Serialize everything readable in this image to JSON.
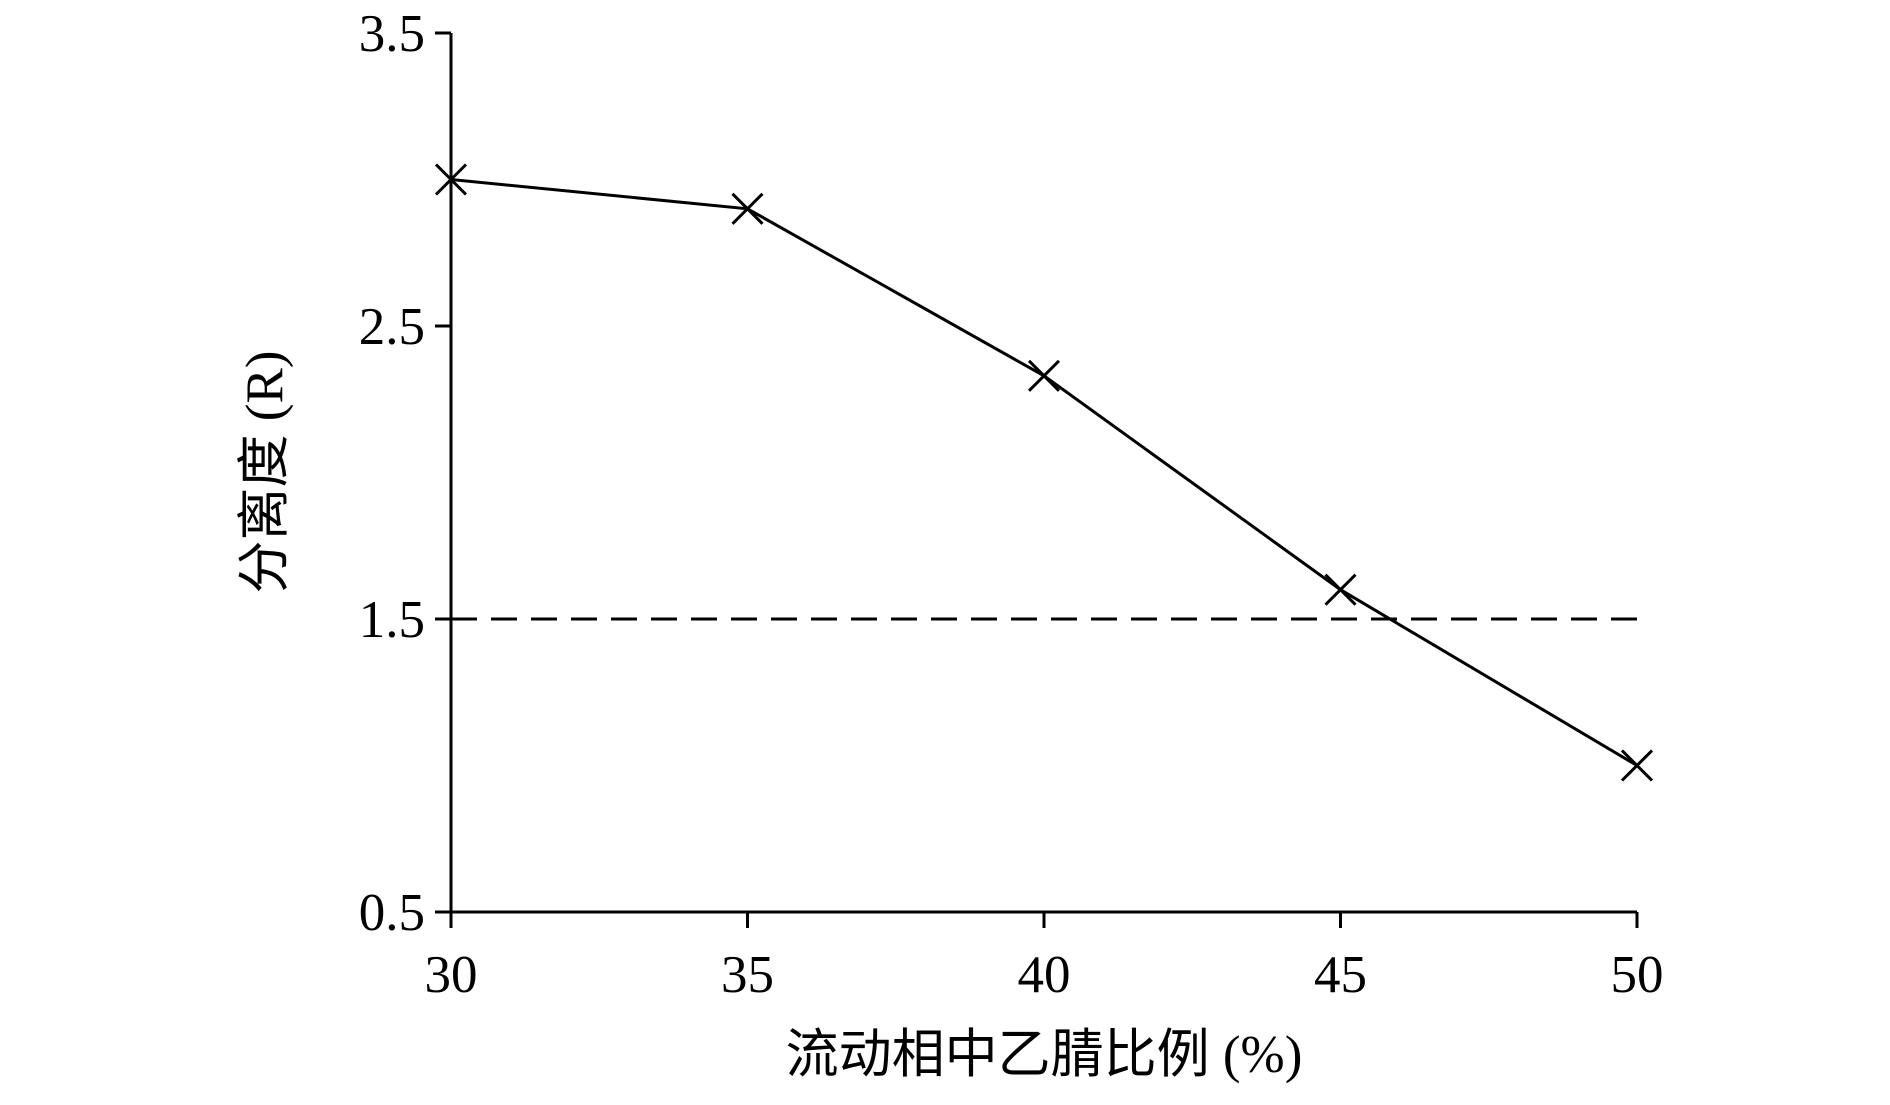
{
  "chart_data": {
    "type": "line",
    "xlabel": "流动相中乙腈比例 (%)",
    "ylabel": "分离度 (R)",
    "x": [
      30,
      35,
      40,
      45,
      50
    ],
    "values": [
      3.0,
      2.9,
      2.33,
      1.6,
      1.0
    ],
    "color": "#000000",
    "marker": "x",
    "reference_line": 1.5,
    "xlim": [
      30,
      50
    ],
    "xticks": [
      30,
      35,
      40,
      45,
      50
    ],
    "ylim": [
      0.5,
      3.5
    ],
    "yticks": [
      0.5,
      1.5,
      2.5,
      3.5
    ],
    "grid": false
  }
}
